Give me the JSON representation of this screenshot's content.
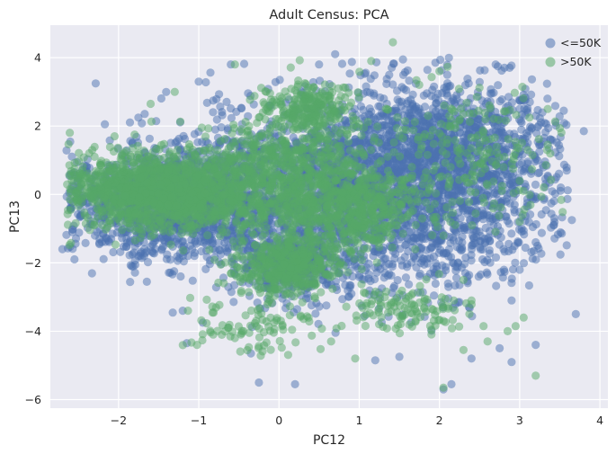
{
  "chart_data": {
    "type": "scatter",
    "title": "Adult Census: PCA",
    "xlabel": "PC12",
    "ylabel": "PC13",
    "xlim": [
      -2.85,
      4.1
    ],
    "ylim": [
      -6.25,
      4.95
    ],
    "xticks": [
      -2,
      -1,
      0,
      1,
      2,
      3,
      4
    ],
    "yticks": [
      -6,
      -4,
      -2,
      0,
      2,
      4
    ],
    "grid": true,
    "background": "#eaeaf2",
    "legend_position": "top-right",
    "series": [
      {
        "name": "<=50K",
        "color": "#4c72b0",
        "clusters": [
          {
            "cx": 1.9,
            "cy": 1.2,
            "sx": 0.75,
            "sy": 1.05,
            "n": 1400
          },
          {
            "cx": -1.3,
            "cy": -0.3,
            "sx": 0.65,
            "sy": 0.75,
            "n": 1300
          },
          {
            "cx": 0.3,
            "cy": 0.5,
            "sx": 0.95,
            "sy": 1.1,
            "n": 900
          },
          {
            "cx": 0.9,
            "cy": -1.4,
            "sx": 0.95,
            "sy": 1.0,
            "n": 600
          },
          {
            "cx": 0.2,
            "cy": -2.0,
            "sx": 0.35,
            "sy": 0.4,
            "n": 300
          },
          {
            "cx": 2.3,
            "cy": -0.5,
            "sx": 0.6,
            "sy": 1.0,
            "n": 350
          }
        ],
        "points": [
          [
            3.8,
            1.85
          ],
          [
            3.65,
            -0.75
          ],
          [
            3.7,
            -3.5
          ],
          [
            3.55,
            2.45
          ],
          [
            3.2,
            2.3
          ],
          [
            3.0,
            2.5
          ],
          [
            3.1,
            2.4
          ],
          [
            3.45,
            2.1
          ],
          [
            2.4,
            -4.8
          ],
          [
            2.05,
            -5.7
          ],
          [
            2.15,
            -5.55
          ],
          [
            0.2,
            -5.55
          ],
          [
            -0.25,
            -5.5
          ],
          [
            1.2,
            -4.85
          ],
          [
            1.5,
            -4.75
          ],
          [
            -1.15,
            -4.35
          ],
          [
            -0.95,
            -3.75
          ],
          [
            -1.2,
            -3.4
          ],
          [
            -0.35,
            -4.65
          ],
          [
            2.9,
            -4.9
          ],
          [
            3.2,
            -4.4
          ],
          [
            2.75,
            -4.5
          ],
          [
            3.3,
            1.55
          ],
          [
            3.35,
            0.55
          ],
          [
            3.1,
            0.9
          ],
          [
            3.2,
            -1.4
          ],
          [
            1.95,
            3.85
          ],
          [
            0.7,
            4.1
          ],
          [
            0.5,
            3.8
          ],
          [
            -0.6,
            3.8
          ],
          [
            -1.0,
            3.3
          ],
          [
            -2.6,
            -0.4
          ],
          [
            -2.7,
            -1.6
          ],
          [
            -2.55,
            -1.9
          ],
          [
            2.9,
            -3.1
          ],
          [
            3.0,
            -2.2
          ],
          [
            2.8,
            -1.6
          ]
        ]
      },
      {
        "name": ">50K",
        "color": "#55a868",
        "clusters": [
          {
            "cx": -1.25,
            "cy": 0.05,
            "sx": 0.6,
            "sy": 0.55,
            "n": 1200
          },
          {
            "cx": 0.1,
            "cy": 0.7,
            "sx": 0.5,
            "sy": 0.9,
            "n": 700
          },
          {
            "cx": 0.95,
            "cy": -0.4,
            "sx": 0.4,
            "sy": 0.6,
            "n": 500
          },
          {
            "cx": 0.1,
            "cy": -2.1,
            "sx": 0.32,
            "sy": 0.42,
            "n": 450
          },
          {
            "cx": 0.4,
            "cy": 2.6,
            "sx": 0.25,
            "sy": 0.35,
            "n": 200
          },
          {
            "cx": 1.6,
            "cy": -3.3,
            "sx": 0.35,
            "sy": 0.35,
            "n": 110
          },
          {
            "cx": -0.4,
            "cy": -3.8,
            "sx": 0.45,
            "sy": 0.45,
            "n": 90
          },
          {
            "cx": 2.3,
            "cy": 1.2,
            "sx": 0.55,
            "sy": 1.0,
            "n": 220
          },
          {
            "cx": -1.9,
            "cy": 0.2,
            "sx": 0.35,
            "sy": 0.45,
            "n": 250
          }
        ],
        "points": [
          [
            1.42,
            4.45
          ],
          [
            2.05,
            -5.65
          ],
          [
            3.2,
            -5.3
          ],
          [
            0.95,
            -4.8
          ],
          [
            2.85,
            -4.0
          ],
          [
            3.05,
            -3.6
          ],
          [
            2.95,
            -3.85
          ],
          [
            2.4,
            -3.1
          ],
          [
            2.3,
            -2.5
          ],
          [
            3.0,
            -0.8
          ],
          [
            3.0,
            0.4
          ],
          [
            2.8,
            0.8
          ],
          [
            3.1,
            1.3
          ],
          [
            3.35,
            2.5
          ],
          [
            -1.6,
            2.65
          ],
          [
            -1.8,
            1.75
          ],
          [
            -2.05,
            1.7
          ],
          [
            -2.4,
            0.55
          ],
          [
            -2.6,
            0.05
          ],
          [
            -2.3,
            -0.9
          ],
          [
            -1.3,
            3.0
          ],
          [
            -0.55,
            3.8
          ],
          [
            1.15,
            3.9
          ],
          [
            2.0,
            3.6
          ],
          [
            0.65,
            -4.3
          ],
          [
            -0.55,
            -4.2
          ],
          [
            2.3,
            -4.55
          ],
          [
            2.55,
            -3.85
          ],
          [
            2.6,
            -4.3
          ]
        ]
      }
    ]
  }
}
